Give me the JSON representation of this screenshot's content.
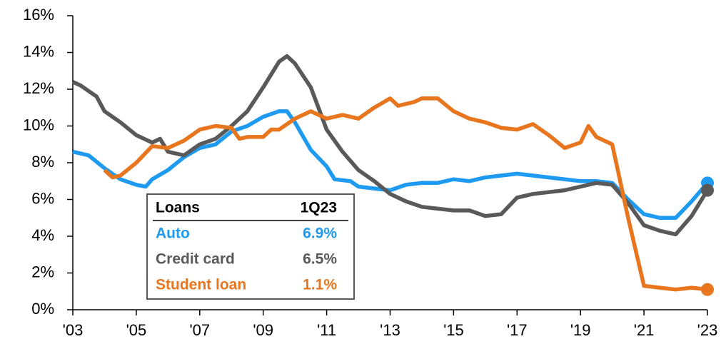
{
  "chart_data": {
    "type": "line",
    "xlim": [
      2003,
      2023
    ],
    "xticks": [
      {
        "value": 2003,
        "label": "'03"
      },
      {
        "value": 2005,
        "label": "'05"
      },
      {
        "value": 2007,
        "label": "'07"
      },
      {
        "value": 2009,
        "label": "'09"
      },
      {
        "value": 2011,
        "label": "'11"
      },
      {
        "value": 2013,
        "label": "'13"
      },
      {
        "value": 2015,
        "label": "'15"
      },
      {
        "value": 2017,
        "label": "'17"
      },
      {
        "value": 2019,
        "label": "'19"
      },
      {
        "value": 2021,
        "label": "'21"
      },
      {
        "value": 2023,
        "label": "'23"
      }
    ],
    "ylim": [
      0,
      16
    ],
    "yticks": [
      {
        "value": 0,
        "label": "0%"
      },
      {
        "value": 2,
        "label": "2%"
      },
      {
        "value": 4,
        "label": "4%"
      },
      {
        "value": 6,
        "label": "6%"
      },
      {
        "value": 8,
        "label": "8%"
      },
      {
        "value": 10,
        "label": "10%"
      },
      {
        "value": 12,
        "label": "12%"
      },
      {
        "value": 14,
        "label": "14%"
      },
      {
        "value": 16,
        "label": "16%"
      }
    ],
    "grid": false,
    "legend_header": [
      "Loans",
      "1Q23"
    ],
    "series": [
      {
        "name": "Auto",
        "color": "#1e9af0",
        "last_label": "6.9%",
        "x": [
          2003,
          2003.5,
          2004,
          2004.5,
          2005,
          2005.3,
          2005.5,
          2006,
          2006.5,
          2007,
          2007.5,
          2008,
          2008.5,
          2009,
          2009.5,
          2009.75,
          2010,
          2010.5,
          2011,
          2011.25,
          2011.75,
          2012,
          2012.5,
          2013,
          2013.5,
          2014,
          2014.5,
          2015,
          2015.5,
          2016,
          2016.5,
          2017,
          2017.5,
          2018,
          2018.5,
          2019,
          2019.5,
          2020,
          2020.5,
          2021,
          2021.5,
          2022,
          2022.5,
          2023
        ],
        "values": [
          8.6,
          8.4,
          7.7,
          7.1,
          6.8,
          6.7,
          7.1,
          7.6,
          8.3,
          8.8,
          9.0,
          9.7,
          10.0,
          10.5,
          10.8,
          10.8,
          10.2,
          8.7,
          7.8,
          7.1,
          7.0,
          6.7,
          6.6,
          6.5,
          6.8,
          6.9,
          6.9,
          7.1,
          7.0,
          7.2,
          7.3,
          7.4,
          7.3,
          7.2,
          7.1,
          7.0,
          7.0,
          6.9,
          6.0,
          5.2,
          5.0,
          5.0,
          5.9,
          6.9
        ]
      },
      {
        "name": "Credit card",
        "color": "#595959",
        "last_label": "6.5%",
        "x": [
          2003,
          2003.25,
          2003.75,
          2004,
          2004.5,
          2005,
          2005.5,
          2005.75,
          2006,
          2006.5,
          2007,
          2007.5,
          2008,
          2008.5,
          2009,
          2009.5,
          2009.75,
          2010,
          2010.5,
          2011,
          2011.5,
          2012,
          2012.5,
          2013,
          2013.5,
          2014,
          2014.5,
          2015,
          2015.5,
          2016,
          2016.5,
          2017,
          2017.5,
          2018,
          2018.5,
          2019,
          2019.5,
          2020,
          2020.5,
          2021,
          2021.5,
          2022,
          2022.5,
          2023
        ],
        "values": [
          12.4,
          12.2,
          11.6,
          10.8,
          10.2,
          9.5,
          9.1,
          9.3,
          8.6,
          8.4,
          9.0,
          9.3,
          10.0,
          10.8,
          12.1,
          13.5,
          13.8,
          13.4,
          12.1,
          9.8,
          8.6,
          7.6,
          7.0,
          6.3,
          5.9,
          5.6,
          5.5,
          5.4,
          5.4,
          5.1,
          5.2,
          6.1,
          6.3,
          6.4,
          6.5,
          6.7,
          6.9,
          6.8,
          5.8,
          4.6,
          4.3,
          4.1,
          5.1,
          6.5
        ]
      },
      {
        "name": "Student loan",
        "color": "#e8761f",
        "last_label": "1.1%",
        "x": [
          2004,
          2004.25,
          2004.5,
          2005,
          2005.5,
          2006,
          2006.5,
          2007,
          2007.5,
          2008,
          2008.25,
          2008.5,
          2009,
          2009.25,
          2009.5,
          2010,
          2010.5,
          2011,
          2011.5,
          2012,
          2012.5,
          2013,
          2013.25,
          2013.75,
          2014,
          2014.5,
          2015,
          2015.5,
          2016,
          2016.5,
          2017,
          2017.5,
          2018,
          2018.5,
          2019,
          2019.25,
          2019.5,
          2020,
          2020.5,
          2021,
          2021.5,
          2022,
          2022.5,
          2023
        ],
        "values": [
          7.6,
          7.2,
          7.3,
          8.0,
          8.9,
          8.8,
          9.2,
          9.8,
          10.0,
          9.9,
          9.3,
          9.4,
          9.4,
          9.8,
          9.8,
          10.4,
          10.8,
          10.4,
          10.6,
          10.4,
          11.0,
          11.5,
          11.1,
          11.3,
          11.5,
          11.5,
          10.8,
          10.4,
          10.2,
          9.9,
          9.8,
          10.1,
          9.5,
          8.8,
          9.1,
          10.0,
          9.4,
          9.0,
          5.0,
          1.3,
          1.2,
          1.1,
          1.2,
          1.1
        ]
      }
    ]
  }
}
